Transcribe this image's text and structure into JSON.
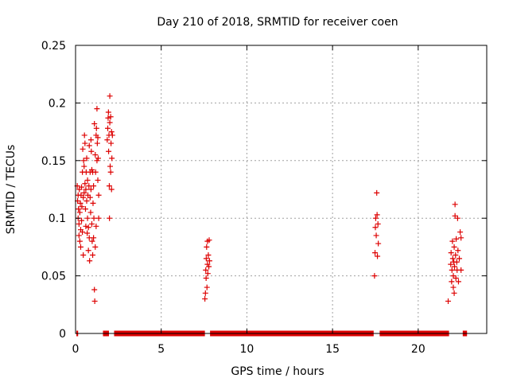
{
  "chart_data": {
    "type": "scatter",
    "title": "Day 210 of 2018, SRMTID for receiver coen",
    "xlabel": "GPS time / hours",
    "ylabel": "SRMTID / TECUs",
    "xlim": [
      0,
      24
    ],
    "ylim": [
      0,
      0.25
    ],
    "xticks": [
      0,
      5,
      10,
      15,
      20
    ],
    "xtick_labels": [
      "0",
      "5",
      "10",
      "15",
      "20"
    ],
    "yticks": [
      0,
      0.05,
      0.1,
      0.15,
      0.2,
      0.25
    ],
    "ytick_labels": [
      "0",
      "0.05",
      "0.1",
      "0.15",
      "0.2",
      "0.25"
    ],
    "grid": true,
    "marker": "+",
    "color": "#dd0000",
    "series": [
      {
        "name": "SRMTID",
        "points": [
          [
            0.1,
            0.128
          ],
          [
            0.12,
            0.115
          ],
          [
            0.15,
            0.12
          ],
          [
            0.15,
            0.1
          ],
          [
            0.17,
            0.108
          ],
          [
            0.2,
            0.095
          ],
          [
            0.2,
            0.085
          ],
          [
            0.22,
            0.125
          ],
          [
            0.25,
            0.105
          ],
          [
            0.25,
            0.08
          ],
          [
            0.28,
            0.113
          ],
          [
            0.3,
            0.09
          ],
          [
            0.3,
            0.075
          ],
          [
            0.32,
            0.12
          ],
          [
            0.35,
            0.127
          ],
          [
            0.35,
            0.098
          ],
          [
            0.37,
            0.11
          ],
          [
            0.4,
            0.088
          ],
          [
            0.4,
            0.14
          ],
          [
            0.42,
            0.16
          ],
          [
            0.45,
            0.118
          ],
          [
            0.45,
            0.068
          ],
          [
            0.47,
            0.15
          ],
          [
            0.5,
            0.145
          ],
          [
            0.5,
            0.122
          ],
          [
            0.52,
            0.172
          ],
          [
            0.55,
            0.165
          ],
          [
            0.55,
            0.13
          ],
          [
            0.58,
            0.108
          ],
          [
            0.6,
            0.125
          ],
          [
            0.6,
            0.093
          ],
          [
            0.62,
            0.14
          ],
          [
            0.65,
            0.152
          ],
          [
            0.65,
            0.115
          ],
          [
            0.68,
            0.087
          ],
          [
            0.7,
            0.1
          ],
          [
            0.7,
            0.133
          ],
          [
            0.72,
            0.12
          ],
          [
            0.75,
            0.072
          ],
          [
            0.75,
            0.092
          ],
          [
            0.78,
            0.128
          ],
          [
            0.8,
            0.163
          ],
          [
            0.8,
            0.083
          ],
          [
            0.82,
            0.063
          ],
          [
            0.85,
            0.14
          ],
          [
            0.85,
            0.118
          ],
          [
            0.88,
            0.105
          ],
          [
            0.9,
            0.168
          ],
          [
            0.9,
            0.125
          ],
          [
            0.92,
            0.158
          ],
          [
            0.95,
            0.142
          ],
          [
            0.95,
            0.095
          ],
          [
            0.97,
            0.08
          ],
          [
            1.0,
            0.14
          ],
          [
            1.0,
            0.068
          ],
          [
            1.02,
            0.113
          ],
          [
            1.05,
            0.128
          ],
          [
            1.05,
            0.083
          ],
          [
            1.07,
            0.1
          ],
          [
            1.1,
            0.182
          ],
          [
            1.1,
            0.038
          ],
          [
            1.12,
            0.028
          ],
          [
            1.15,
            0.155
          ],
          [
            1.15,
            0.075
          ],
          [
            1.17,
            0.14
          ],
          [
            1.2,
            0.172
          ],
          [
            1.2,
            0.093
          ],
          [
            1.22,
            0.178
          ],
          [
            1.25,
            0.195
          ],
          [
            1.25,
            0.15
          ],
          [
            1.27,
            0.165
          ],
          [
            1.3,
            0.133
          ],
          [
            1.3,
            0.17
          ],
          [
            1.32,
            0.152
          ],
          [
            1.35,
            0.12
          ],
          [
            1.35,
            0.1
          ],
          [
            1.85,
            0.168
          ],
          [
            1.88,
            0.178
          ],
          [
            1.9,
            0.187
          ],
          [
            1.92,
            0.192
          ],
          [
            1.93,
            0.158
          ],
          [
            1.95,
            0.172
          ],
          [
            1.97,
            0.128
          ],
          [
            1.98,
            0.1
          ],
          [
            2.0,
            0.206
          ],
          [
            2.0,
            0.183
          ],
          [
            2.02,
            0.145
          ],
          [
            2.05,
            0.14
          ],
          [
            2.05,
            0.188
          ],
          [
            2.07,
            0.165
          ],
          [
            2.1,
            0.175
          ],
          [
            2.1,
            0.125
          ],
          [
            2.12,
            0.152
          ],
          [
            2.15,
            0.172
          ],
          [
            7.55,
            0.03
          ],
          [
            7.58,
            0.035
          ],
          [
            7.6,
            0.055
          ],
          [
            7.62,
            0.048
          ],
          [
            7.63,
            0.065
          ],
          [
            7.65,
            0.075
          ],
          [
            7.67,
            0.04
          ],
          [
            7.7,
            0.06
          ],
          [
            7.7,
            0.08
          ],
          [
            7.72,
            0.052
          ],
          [
            7.75,
            0.068
          ],
          [
            7.78,
            0.058
          ],
          [
            7.8,
            0.081
          ],
          [
            7.82,
            0.063
          ],
          [
            17.45,
            0.05
          ],
          [
            17.48,
            0.07
          ],
          [
            17.5,
            0.092
          ],
          [
            17.52,
            0.1
          ],
          [
            17.55,
            0.085
          ],
          [
            17.58,
            0.122
          ],
          [
            17.6,
            0.103
          ],
          [
            17.62,
            0.067
          ],
          [
            17.65,
            0.095
          ],
          [
            17.67,
            0.078
          ],
          [
            21.75,
            0.028
          ],
          [
            21.9,
            0.06
          ],
          [
            21.92,
            0.07
          ],
          [
            21.95,
            0.045
          ],
          [
            21.97,
            0.055
          ],
          [
            22.0,
            0.08
          ],
          [
            22.02,
            0.065
          ],
          [
            22.05,
            0.04
          ],
          [
            22.05,
            0.05
          ],
          [
            22.08,
            0.062
          ],
          [
            22.1,
            0.075
          ],
          [
            22.1,
            0.035
          ],
          [
            22.12,
            0.058
          ],
          [
            22.15,
            0.112
          ],
          [
            22.15,
            0.102
          ],
          [
            22.18,
            0.068
          ],
          [
            22.2,
            0.048
          ],
          [
            22.22,
            0.082
          ],
          [
            22.25,
            0.062
          ],
          [
            22.27,
            0.055
          ],
          [
            22.3,
            0.1
          ],
          [
            22.32,
            0.072
          ],
          [
            22.35,
            0.045
          ],
          [
            22.4,
            0.065
          ],
          [
            22.45,
            0.088
          ],
          [
            22.5,
            0.083
          ],
          [
            22.5,
            0.055
          ]
        ]
      }
    ],
    "zero_segments": [
      [
        0.05,
        0.15
      ],
      [
        1.6,
        1.95
      ],
      [
        2.25,
        7.55
      ],
      [
        7.85,
        17.4
      ],
      [
        17.75,
        21.8
      ],
      [
        22.6,
        22.85
      ]
    ]
  }
}
